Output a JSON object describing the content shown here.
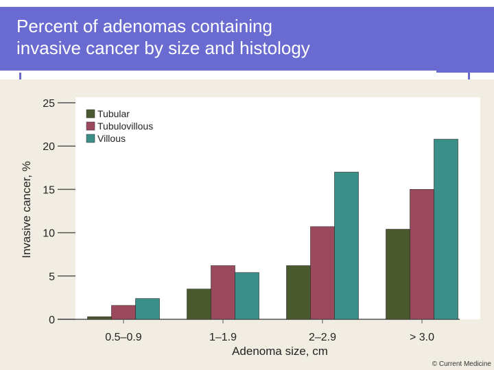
{
  "slide": {
    "title": "Percent of adenomas containing\ninvasive cancer by size and histology",
    "copyright": "© Current Medicine",
    "header_color": "#6a6bd0"
  },
  "chart_data": {
    "type": "bar",
    "categories": [
      "0.5–0.9",
      "1–1.9",
      "2–2.9",
      "> 3.0"
    ],
    "series": [
      {
        "name": "Tubular",
        "color": "#4b5a2e",
        "values": [
          0.3,
          3.5,
          6.2,
          10.4
        ]
      },
      {
        "name": "Tubulovillous",
        "color": "#9a4a5c",
        "values": [
          1.6,
          6.2,
          10.7,
          15.0
        ]
      },
      {
        "name": "Villous",
        "color": "#3a9088",
        "values": [
          2.4,
          5.4,
          17.0,
          20.8
        ]
      }
    ],
    "xlabel": "Adenoma size, cm",
    "ylabel": "Invasive cancer, %",
    "yticks": [
      0,
      5,
      10,
      15,
      20,
      25
    ],
    "ylim": [
      0,
      25
    ],
    "legend_position": "top-left",
    "grid": false
  }
}
